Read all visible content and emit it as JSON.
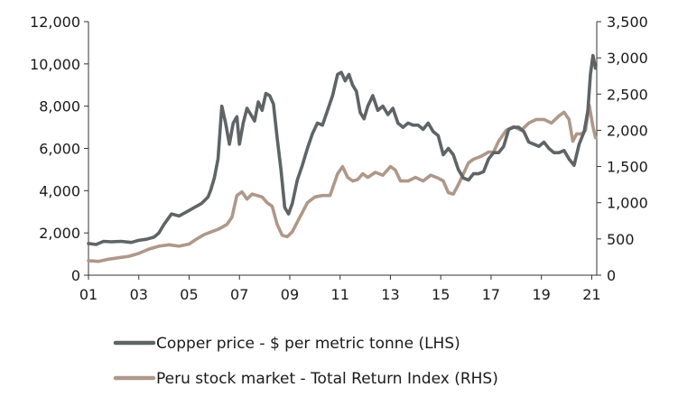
{
  "chart_data": {
    "type": "line",
    "title": "",
    "xlabel": "",
    "x_ticks": [
      "01",
      "03",
      "05",
      "07",
      "09",
      "11",
      "13",
      "15",
      "17",
      "19",
      "21"
    ],
    "xlim": [
      2001,
      2021.2
    ],
    "y_left": {
      "ylim": [
        0,
        12000
      ],
      "ticks": [
        "0",
        "2,000",
        "4,000",
        "6,000",
        "8,000",
        "10,000",
        "12,000"
      ]
    },
    "y_right": {
      "ylim": [
        0,
        3500
      ],
      "ticks": [
        "0",
        "500",
        "1,000",
        "1,500",
        "2,000",
        "2,500",
        "3,000",
        "3,500"
      ]
    },
    "grid": false,
    "legend_placement": "bottom",
    "series": [
      {
        "name": "Copper price - $ per metric tonne (LHS)",
        "axis": "left",
        "color": "#5f6466",
        "x": [
          2001.0,
          2001.3,
          2001.6,
          2001.9,
          2002.3,
          2002.7,
          2003.0,
          2003.3,
          2003.6,
          2003.8,
          2004.0,
          2004.3,
          2004.6,
          2004.9,
          2005.2,
          2005.5,
          2005.75,
          2005.85,
          2006.0,
          2006.15,
          2006.3,
          2006.45,
          2006.6,
          2006.75,
          2006.9,
          2007.0,
          2007.15,
          2007.3,
          2007.45,
          2007.6,
          2007.75,
          2007.9,
          2008.05,
          2008.2,
          2008.35,
          2008.5,
          2008.65,
          2008.8,
          2008.95,
          2009.1,
          2009.3,
          2009.5,
          2009.7,
          2009.9,
          2010.1,
          2010.3,
          2010.5,
          2010.7,
          2010.9,
          2011.05,
          2011.2,
          2011.35,
          2011.5,
          2011.65,
          2011.8,
          2011.95,
          2012.1,
          2012.3,
          2012.5,
          2012.7,
          2012.9,
          2013.1,
          2013.3,
          2013.5,
          2013.7,
          2013.9,
          2014.1,
          2014.3,
          2014.5,
          2014.7,
          2014.9,
          2015.1,
          2015.3,
          2015.5,
          2015.7,
          2015.9,
          2016.1,
          2016.3,
          2016.5,
          2016.7,
          2016.9,
          2017.1,
          2017.3,
          2017.5,
          2017.7,
          2017.9,
          2018.1,
          2018.3,
          2018.5,
          2018.7,
          2018.9,
          2019.1,
          2019.3,
          2019.5,
          2019.7,
          2019.9,
          2020.1,
          2020.3,
          2020.5,
          2020.7,
          2020.85,
          2020.95,
          2021.05,
          2021.15
        ],
        "values": [
          1500,
          1450,
          1600,
          1580,
          1600,
          1550,
          1650,
          1700,
          1800,
          2000,
          2400,
          2900,
          2800,
          3000,
          3200,
          3400,
          3700,
          4000,
          4600,
          5500,
          8000,
          7200,
          6200,
          7200,
          7500,
          6200,
          7200,
          7900,
          7600,
          7300,
          8200,
          7800,
          8600,
          8500,
          8100,
          6500,
          5000,
          3200,
          2900,
          3400,
          4500,
          5200,
          6000,
          6700,
          7200,
          7100,
          7800,
          8500,
          9500,
          9600,
          9200,
          9500,
          9000,
          8700,
          7700,
          7400,
          8000,
          8500,
          7800,
          8000,
          7600,
          7900,
          7200,
          7000,
          7200,
          7100,
          7100,
          6900,
          7200,
          6800,
          6600,
          5700,
          6000,
          5700,
          5000,
          4600,
          4500,
          4800,
          4800,
          4900,
          5500,
          5800,
          5800,
          6100,
          6900,
          7000,
          7000,
          6800,
          6300,
          6200,
          6100,
          6300,
          6000,
          5800,
          5800,
          5900,
          5500,
          5200,
          6200,
          6800,
          7800,
          9500,
          10400,
          9800
        ]
      },
      {
        "name": "Peru stock market - Total Return Index (RHS)",
        "axis": "right",
        "color": "#ae9889",
        "x": [
          2001.0,
          2001.4,
          2001.8,
          2002.2,
          2002.6,
          2003.0,
          2003.4,
          2003.8,
          2004.2,
          2004.6,
          2005.0,
          2005.3,
          2005.6,
          2005.9,
          2006.2,
          2006.5,
          2006.7,
          2006.9,
          2007.1,
          2007.3,
          2007.5,
          2007.7,
          2007.9,
          2008.1,
          2008.3,
          2008.5,
          2008.7,
          2008.9,
          2009.1,
          2009.4,
          2009.7,
          2010.0,
          2010.3,
          2010.6,
          2010.9,
          2011.1,
          2011.3,
          2011.5,
          2011.7,
          2011.9,
          2012.1,
          2012.4,
          2012.7,
          2013.0,
          2013.2,
          2013.4,
          2013.7,
          2014.0,
          2014.3,
          2014.6,
          2014.9,
          2015.1,
          2015.3,
          2015.5,
          2015.7,
          2015.9,
          2016.1,
          2016.3,
          2016.6,
          2016.9,
          2017.1,
          2017.3,
          2017.6,
          2017.9,
          2018.2,
          2018.5,
          2018.8,
          2019.1,
          2019.4,
          2019.7,
          2019.9,
          2020.1,
          2020.25,
          2020.4,
          2020.6,
          2020.75,
          2020.9,
          2021.05,
          2021.15
        ],
        "values": [
          200,
          190,
          220,
          240,
          260,
          300,
          360,
          400,
          420,
          400,
          430,
          500,
          560,
          600,
          640,
          700,
          800,
          1100,
          1150,
          1050,
          1120,
          1100,
          1080,
          1000,
          950,
          700,
          550,
          530,
          600,
          800,
          1000,
          1080,
          1100,
          1100,
          1400,
          1500,
          1350,
          1300,
          1320,
          1400,
          1350,
          1420,
          1380,
          1500,
          1450,
          1300,
          1300,
          1350,
          1300,
          1380,
          1340,
          1300,
          1140,
          1120,
          1250,
          1400,
          1550,
          1600,
          1640,
          1700,
          1700,
          1850,
          2000,
          2050,
          2000,
          2100,
          2150,
          2150,
          2100,
          2200,
          2250,
          2150,
          1850,
          1950,
          1950,
          2000,
          2350,
          2050,
          1900
        ]
      }
    ]
  }
}
